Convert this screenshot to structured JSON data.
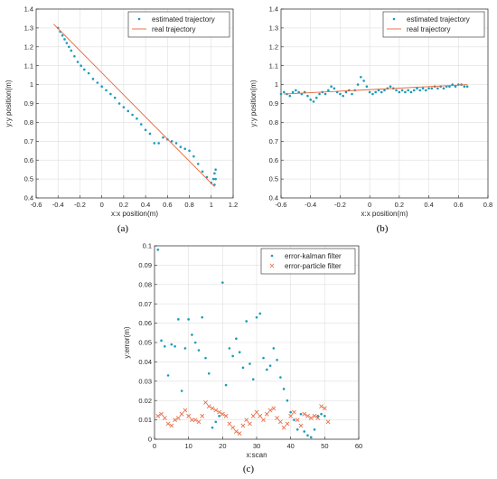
{
  "colors": {
    "series_a": "#1a9bb8",
    "series_b": "#e8643a"
  },
  "chart_data": [
    {
      "type": "scatter",
      "caption": "(a)",
      "xlabel": "x:x position(m)",
      "ylabel": "y:y position(m)",
      "xlim": [
        -0.6,
        1.2
      ],
      "ylim": [
        0.4,
        1.4
      ],
      "xticks": [
        -0.6,
        -0.4,
        -0.2,
        0,
        0.2,
        0.4,
        0.6,
        0.8,
        1,
        1.2
      ],
      "xtick_labels": [
        "-0.6",
        "-0.4",
        "-0.2",
        "0",
        "0.2",
        "0.4",
        "0.6",
        "0.8",
        "1",
        "1.2"
      ],
      "yticks": [
        0.4,
        0.5,
        0.6,
        0.7,
        0.8,
        0.9,
        1,
        1.1,
        1.2,
        1.3,
        1.4
      ],
      "ytick_labels": [
        "0.4",
        "0.5",
        "0.6",
        "0.7",
        "0.8",
        "0.9",
        "1",
        "1.1",
        "1.2",
        "1.3",
        "1.4"
      ],
      "grid": true,
      "legend_position": "top-right",
      "series": [
        {
          "name": "estimated trajectory",
          "style": "dots",
          "x": [
            -0.4,
            -0.38,
            -0.36,
            -0.34,
            -0.32,
            -0.3,
            -0.28,
            -0.25,
            -0.22,
            -0.19,
            -0.16,
            -0.12,
            -0.08,
            -0.04,
            0.0,
            0.04,
            0.08,
            0.12,
            0.16,
            0.2,
            0.24,
            0.28,
            0.32,
            0.36,
            0.4,
            0.44,
            0.48,
            0.52,
            0.56,
            0.6,
            0.64,
            0.68,
            0.72,
            0.76,
            0.8,
            0.84,
            0.88,
            0.92,
            0.96,
            1.0,
            1.02,
            1.03,
            1.04,
            1.04,
            1.03
          ],
          "y": [
            1.3,
            1.28,
            1.26,
            1.24,
            1.22,
            1.2,
            1.18,
            1.15,
            1.12,
            1.1,
            1.08,
            1.06,
            1.03,
            1.01,
            0.99,
            0.97,
            0.95,
            0.93,
            0.9,
            0.88,
            0.86,
            0.84,
            0.82,
            0.79,
            0.76,
            0.74,
            0.69,
            0.69,
            0.72,
            0.71,
            0.7,
            0.69,
            0.67,
            0.66,
            0.65,
            0.62,
            0.58,
            0.54,
            0.51,
            0.48,
            0.5,
            0.53,
            0.55,
            0.5,
            0.47
          ]
        },
        {
          "name": "real trajectory",
          "style": "line",
          "x": [
            -0.44,
            1.03
          ],
          "y": [
            1.32,
            0.46
          ]
        }
      ]
    },
    {
      "type": "scatter",
      "caption": "(b)",
      "xlabel": "x:x position(m)",
      "ylabel": "y:y position(m)",
      "xlim": [
        -0.6,
        0.8
      ],
      "ylim": [
        0.4,
        1.4
      ],
      "xticks": [
        -0.6,
        -0.4,
        -0.2,
        0,
        0.2,
        0.4,
        0.6,
        0.8
      ],
      "xtick_labels": [
        "-0.6",
        "-0.4",
        "-0.2",
        "0",
        "0.2",
        "0.4",
        "0.6",
        "0.8"
      ],
      "yticks": [
        0.4,
        0.5,
        0.6,
        0.7,
        0.8,
        0.9,
        1,
        1.1,
        1.2,
        1.3,
        1.4
      ],
      "ytick_labels": [
        "0.4",
        "0.5",
        "0.6",
        "0.7",
        "0.8",
        "0.9",
        "1",
        "1.1",
        "1.2",
        "1.3",
        "1.4"
      ],
      "grid": true,
      "legend_position": "top-right",
      "series": [
        {
          "name": "estimated trajectory",
          "style": "dots",
          "x": [
            -0.6,
            -0.58,
            -0.56,
            -0.54,
            -0.52,
            -0.5,
            -0.48,
            -0.46,
            -0.44,
            -0.42,
            -0.4,
            -0.38,
            -0.36,
            -0.34,
            -0.32,
            -0.3,
            -0.28,
            -0.26,
            -0.24,
            -0.22,
            -0.2,
            -0.18,
            -0.16,
            -0.14,
            -0.12,
            -0.1,
            -0.08,
            -0.06,
            -0.04,
            -0.02,
            0.0,
            0.02,
            0.04,
            0.06,
            0.08,
            0.1,
            0.12,
            0.14,
            0.16,
            0.18,
            0.2,
            0.22,
            0.24,
            0.26,
            0.28,
            0.3,
            0.32,
            0.34,
            0.36,
            0.38,
            0.4,
            0.42,
            0.44,
            0.46,
            0.48,
            0.5,
            0.52,
            0.54,
            0.56,
            0.58,
            0.6,
            0.62,
            0.64,
            0.66
          ],
          "y": [
            0.95,
            0.96,
            0.95,
            0.94,
            0.96,
            0.97,
            0.96,
            0.95,
            0.96,
            0.94,
            0.92,
            0.91,
            0.93,
            0.95,
            0.96,
            0.95,
            0.97,
            0.99,
            0.98,
            0.96,
            0.95,
            0.94,
            0.96,
            0.97,
            0.95,
            0.97,
            1.0,
            1.04,
            1.02,
            0.99,
            0.96,
            0.95,
            0.96,
            0.97,
            0.96,
            0.97,
            0.98,
            0.99,
            0.98,
            0.97,
            0.96,
            0.97,
            0.96,
            0.97,
            0.96,
            0.97,
            0.98,
            0.97,
            0.98,
            0.97,
            0.98,
            0.98,
            0.99,
            0.98,
            0.99,
            0.98,
            0.99,
            0.99,
            1.0,
            0.99,
            1.0,
            1.0,
            0.99,
            0.99
          ]
        },
        {
          "name": "real trajectory",
          "style": "line",
          "x": [
            -0.58,
            0.66
          ],
          "y": [
            0.95,
            1.0
          ]
        }
      ]
    },
    {
      "type": "scatter",
      "caption": "(c)",
      "xlabel": "x:scan",
      "ylabel": "y:error(m)",
      "xlim": [
        0,
        60
      ],
      "ylim": [
        0,
        0.1
      ],
      "xticks": [
        0,
        10,
        20,
        30,
        40,
        50,
        60
      ],
      "xtick_labels": [
        "0",
        "10",
        "20",
        "30",
        "40",
        "50",
        "60"
      ],
      "yticks": [
        0,
        0.01,
        0.02,
        0.03,
        0.04,
        0.05,
        0.06,
        0.07,
        0.08,
        0.09,
        0.1
      ],
      "ytick_labels": [
        "0",
        "0.01",
        "0.02",
        "0.03",
        "0.04",
        "0.05",
        "0.06",
        "0.07",
        "0.08",
        "0.09",
        "0.1"
      ],
      "grid": true,
      "legend_position": "top-right",
      "series": [
        {
          "name": "error-kalman filter",
          "style": "dots",
          "x": [
            1,
            2,
            3,
            4,
            5,
            6,
            7,
            8,
            9,
            10,
            11,
            12,
            13,
            14,
            15,
            16,
            17,
            18,
            19,
            20,
            21,
            22,
            23,
            24,
            25,
            26,
            27,
            28,
            29,
            30,
            31,
            32,
            33,
            34,
            35,
            36,
            37,
            38,
            39,
            40,
            41,
            42,
            43,
            44,
            45,
            46,
            47,
            48,
            49,
            50
          ],
          "y": [
            0.098,
            0.051,
            0.048,
            0.033,
            0.049,
            0.048,
            0.062,
            0.025,
            0.047,
            0.062,
            0.054,
            0.05,
            0.046,
            0.063,
            0.042,
            0.034,
            0.006,
            0.009,
            0.012,
            0.081,
            0.028,
            0.047,
            0.043,
            0.052,
            0.045,
            0.037,
            0.061,
            0.039,
            0.031,
            0.063,
            0.065,
            0.042,
            0.036,
            0.038,
            0.047,
            0.041,
            0.032,
            0.026,
            0.02,
            0.014,
            0.01,
            0.005,
            0.013,
            0.004,
            0.002,
            0.001,
            0.005,
            0.012,
            0.013,
            0.012
          ]
        },
        {
          "name": "error-particle filter",
          "style": "crosses",
          "x": [
            1,
            2,
            3,
            4,
            5,
            6,
            7,
            8,
            9,
            10,
            11,
            12,
            13,
            14,
            15,
            16,
            17,
            18,
            19,
            20,
            21,
            22,
            23,
            24,
            25,
            26,
            27,
            28,
            29,
            30,
            31,
            32,
            33,
            34,
            35,
            36,
            37,
            38,
            39,
            40,
            41,
            42,
            43,
            44,
            45,
            46,
            47,
            48,
            49,
            50,
            51
          ],
          "y": [
            0.012,
            0.013,
            0.011,
            0.008,
            0.007,
            0.01,
            0.011,
            0.013,
            0.015,
            0.012,
            0.01,
            0.01,
            0.009,
            0.012,
            0.019,
            0.017,
            0.016,
            0.015,
            0.014,
            0.013,
            0.012,
            0.008,
            0.006,
            0.004,
            0.003,
            0.007,
            0.01,
            0.008,
            0.012,
            0.014,
            0.012,
            0.01,
            0.013,
            0.015,
            0.016,
            0.011,
            0.009,
            0.006,
            0.008,
            0.012,
            0.014,
            0.01,
            0.007,
            0.013,
            0.012,
            0.011,
            0.012,
            0.011,
            0.017,
            0.016,
            0.009
          ]
        }
      ]
    }
  ]
}
